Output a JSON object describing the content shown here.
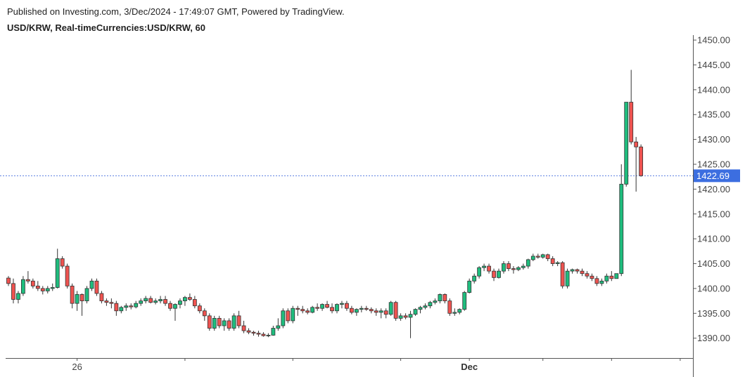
{
  "header": {
    "published": "Published on Investing.com, 3/Dec/2024 - 17:49:07 GMT, Powered by TradingView.",
    "symbol": "USD/KRW, Real-timeCurrencies:USD/KRW, 60"
  },
  "colors": {
    "up": "#1fbd7e",
    "down": "#ef5350",
    "wick": "#333333",
    "price_line": "#5b7fe0",
    "price_tag": "#3c6ee0",
    "axis": "#555555"
  },
  "chart_data": {
    "type": "candlestick",
    "title": "",
    "xlabel": "",
    "ylabel": "",
    "ylim": [
      1386,
      1451
    ],
    "yticks": [
      1390,
      1395,
      1400,
      1405,
      1410,
      1415,
      1420,
      1425,
      1430,
      1435,
      1440,
      1445,
      1450
    ],
    "ytick_labels": [
      "1390.00",
      "1395.00",
      "1400.00",
      "1405.00",
      "1410.00",
      "1415.00",
      "1420.00",
      "1425.00",
      "1430.00",
      "1435.00",
      "1440.00",
      "1445.00",
      "1450.00"
    ],
    "xticks": [
      {
        "index": 14,
        "label": "26"
      },
      {
        "index": 36,
        "label": ""
      },
      {
        "index": 58,
        "label": ""
      },
      {
        "index": 80,
        "label": ""
      },
      {
        "index": 94,
        "label": "Dec"
      },
      {
        "index": 109,
        "label": ""
      },
      {
        "index": 123,
        "label": ""
      },
      {
        "index": 137,
        "label": ""
      }
    ],
    "last_price": 1422.69,
    "last_price_label": "1422.69",
    "candles": [
      [
        1402.1,
        1402.5,
        1400.5,
        1401.0
      ],
      [
        1401.0,
        1402.0,
        1397.0,
        1397.8
      ],
      [
        1397.8,
        1399.5,
        1397.0,
        1399.0
      ],
      [
        1399.0,
        1402.5,
        1398.5,
        1401.8
      ],
      [
        1401.8,
        1403.5,
        1401.0,
        1401.5
      ],
      [
        1401.5,
        1402.0,
        1400.0,
        1400.5
      ],
      [
        1400.5,
        1401.5,
        1399.5,
        1400.0
      ],
      [
        1400.0,
        1400.5,
        1398.8,
        1399.5
      ],
      [
        1399.5,
        1400.5,
        1399.0,
        1400.0
      ],
      [
        1400.0,
        1401.0,
        1399.5,
        1400.2
      ],
      [
        1400.2,
        1408.0,
        1400.0,
        1406.0
      ],
      [
        1406.0,
        1406.5,
        1404.0,
        1404.5
      ],
      [
        1404.5,
        1405.0,
        1400.0,
        1400.5
      ],
      [
        1400.5,
        1401.0,
        1396.0,
        1397.0
      ],
      [
        1397.0,
        1399.5,
        1395.5,
        1398.8
      ],
      [
        1398.8,
        1399.0,
        1394.5,
        1397.5
      ],
      [
        1397.5,
        1400.5,
        1397.0,
        1400.0
      ],
      [
        1400.0,
        1402.0,
        1399.5,
        1401.5
      ],
      [
        1401.5,
        1402.0,
        1398.5,
        1399.0
      ],
      [
        1399.0,
        1399.5,
        1397.0,
        1397.5
      ],
      [
        1397.5,
        1398.0,
        1396.5,
        1397.2
      ],
      [
        1397.2,
        1398.0,
        1396.0,
        1397.0
      ],
      [
        1397.0,
        1397.5,
        1394.5,
        1395.5
      ],
      [
        1395.5,
        1396.5,
        1395.0,
        1396.2
      ],
      [
        1396.2,
        1397.0,
        1395.5,
        1396.5
      ],
      [
        1396.5,
        1397.0,
        1395.8,
        1396.3
      ],
      [
        1396.3,
        1397.5,
        1396.0,
        1397.0
      ],
      [
        1397.0,
        1398.0,
        1396.5,
        1397.5
      ],
      [
        1397.5,
        1398.5,
        1397.0,
        1398.0
      ],
      [
        1398.0,
        1398.5,
        1397.0,
        1397.2
      ],
      [
        1397.2,
        1398.0,
        1396.8,
        1397.5
      ],
      [
        1397.5,
        1398.5,
        1397.0,
        1397.8
      ],
      [
        1397.8,
        1398.5,
        1396.5,
        1397.0
      ],
      [
        1397.0,
        1397.5,
        1395.5,
        1396.0
      ],
      [
        1396.0,
        1397.0,
        1393.5,
        1396.8
      ],
      [
        1396.8,
        1398.0,
        1396.0,
        1397.5
      ],
      [
        1397.5,
        1398.5,
        1396.5,
        1398.2
      ],
      [
        1398.2,
        1399.0,
        1397.5,
        1397.8
      ],
      [
        1397.8,
        1398.5,
        1396.0,
        1396.5
      ],
      [
        1396.5,
        1397.0,
        1395.0,
        1395.5
      ],
      [
        1395.5,
        1396.0,
        1393.5,
        1394.5
      ],
      [
        1394.5,
        1395.0,
        1391.5,
        1392.0
      ],
      [
        1392.0,
        1394.5,
        1391.5,
        1394.0
      ],
      [
        1394.0,
        1394.5,
        1392.0,
        1392.5
      ],
      [
        1392.5,
        1394.0,
        1391.5,
        1393.5
      ],
      [
        1393.5,
        1394.0,
        1391.5,
        1392.0
      ],
      [
        1392.0,
        1395.0,
        1391.5,
        1394.5
      ],
      [
        1394.5,
        1395.5,
        1392.0,
        1392.5
      ],
      [
        1392.5,
        1393.5,
        1391.0,
        1391.5
      ],
      [
        1391.5,
        1392.0,
        1390.8,
        1391.2
      ],
      [
        1391.2,
        1391.5,
        1390.5,
        1391.0
      ],
      [
        1391.0,
        1391.5,
        1390.3,
        1390.8
      ],
      [
        1390.8,
        1391.2,
        1390.3,
        1390.5
      ],
      [
        1390.5,
        1391.0,
        1390.2,
        1390.6
      ],
      [
        1390.6,
        1392.5,
        1390.5,
        1392.0
      ],
      [
        1392.0,
        1394.0,
        1391.5,
        1392.5
      ],
      [
        1392.5,
        1396.0,
        1392.0,
        1395.5
      ],
      [
        1395.5,
        1396.0,
        1393.0,
        1393.5
      ],
      [
        1393.5,
        1396.5,
        1393.0,
        1396.0
      ],
      [
        1396.0,
        1396.5,
        1394.5,
        1395.8
      ],
      [
        1395.8,
        1396.5,
        1395.0,
        1395.5
      ],
      [
        1395.5,
        1396.0,
        1394.8,
        1395.2
      ],
      [
        1395.2,
        1396.5,
        1395.0,
        1396.2
      ],
      [
        1396.2,
        1397.0,
        1395.5,
        1396.0
      ],
      [
        1396.0,
        1397.0,
        1395.5,
        1396.8
      ],
      [
        1396.8,
        1397.5,
        1396.0,
        1396.2
      ],
      [
        1396.2,
        1397.0,
        1395.0,
        1395.5
      ],
      [
        1395.5,
        1397.0,
        1395.0,
        1396.8
      ],
      [
        1396.8,
        1397.5,
        1396.0,
        1397.0
      ],
      [
        1397.0,
        1397.5,
        1395.5,
        1396.0
      ],
      [
        1396.0,
        1396.5,
        1394.8,
        1395.2
      ],
      [
        1395.2,
        1396.0,
        1394.5,
        1395.8
      ],
      [
        1395.8,
        1396.5,
        1395.2,
        1396.0
      ],
      [
        1396.0,
        1396.5,
        1395.5,
        1395.8
      ],
      [
        1395.8,
        1396.2,
        1395.0,
        1395.5
      ],
      [
        1395.5,
        1396.0,
        1394.5,
        1395.2
      ],
      [
        1395.2,
        1396.0,
        1394.0,
        1395.5
      ],
      [
        1395.5,
        1396.0,
        1394.0,
        1394.8
      ],
      [
        1394.8,
        1397.5,
        1394.5,
        1397.2
      ],
      [
        1397.2,
        1397.5,
        1393.5,
        1394.0
      ],
      [
        1394.0,
        1395.0,
        1393.5,
        1394.5
      ],
      [
        1394.5,
        1395.0,
        1393.8,
        1394.2
      ],
      [
        1394.2,
        1395.5,
        1390.0,
        1394.8
      ],
      [
        1394.8,
        1396.0,
        1394.5,
        1395.8
      ],
      [
        1395.8,
        1396.5,
        1395.0,
        1396.2
      ],
      [
        1396.2,
        1397.0,
        1395.8,
        1396.5
      ],
      [
        1396.5,
        1397.5,
        1396.0,
        1397.2
      ],
      [
        1397.2,
        1398.0,
        1396.8,
        1397.5
      ],
      [
        1397.5,
        1399.0,
        1397.0,
        1398.8
      ],
      [
        1398.8,
        1399.0,
        1397.0,
        1397.5
      ],
      [
        1397.5,
        1398.0,
        1394.5,
        1395.0
      ],
      [
        1395.0,
        1396.0,
        1394.5,
        1395.2
      ],
      [
        1395.2,
        1396.0,
        1394.8,
        1395.8
      ],
      [
        1395.8,
        1399.5,
        1395.5,
        1399.2
      ],
      [
        1399.2,
        1402.0,
        1399.0,
        1401.5
      ],
      [
        1401.5,
        1403.0,
        1401.0,
        1402.5
      ],
      [
        1402.5,
        1404.5,
        1402.0,
        1404.2
      ],
      [
        1404.2,
        1405.0,
        1403.5,
        1404.5
      ],
      [
        1404.5,
        1405.0,
        1403.0,
        1403.5
      ],
      [
        1403.5,
        1404.0,
        1401.5,
        1402.2
      ],
      [
        1402.2,
        1404.0,
        1402.0,
        1403.5
      ],
      [
        1403.5,
        1405.5,
        1403.0,
        1405.0
      ],
      [
        1405.0,
        1405.5,
        1403.5,
        1404.0
      ],
      [
        1404.0,
        1404.5,
        1403.0,
        1403.8
      ],
      [
        1403.8,
        1404.5,
        1403.5,
        1404.2
      ],
      [
        1404.2,
        1405.0,
        1403.8,
        1404.5
      ],
      [
        1404.5,
        1406.0,
        1404.0,
        1405.8
      ],
      [
        1405.8,
        1407.0,
        1405.5,
        1406.5
      ],
      [
        1406.5,
        1407.0,
        1406.0,
        1406.3
      ],
      [
        1406.3,
        1407.0,
        1406.0,
        1406.8
      ],
      [
        1406.8,
        1407.0,
        1405.5,
        1406.0
      ],
      [
        1406.0,
        1406.5,
        1404.5,
        1405.0
      ],
      [
        1405.0,
        1405.5,
        1404.5,
        1405.2
      ],
      [
        1405.2,
        1405.5,
        1400.0,
        1400.5
      ],
      [
        1400.5,
        1404.0,
        1400.0,
        1403.5
      ],
      [
        1403.5,
        1404.0,
        1403.0,
        1403.8
      ],
      [
        1403.8,
        1404.0,
        1403.0,
        1403.5
      ],
      [
        1403.5,
        1404.0,
        1402.5,
        1403.0
      ],
      [
        1403.0,
        1403.5,
        1402.0,
        1402.5
      ],
      [
        1402.5,
        1403.0,
        1401.5,
        1402.0
      ],
      [
        1402.0,
        1402.5,
        1400.5,
        1401.0
      ],
      [
        1401.0,
        1402.0,
        1400.5,
        1401.5
      ],
      [
        1401.5,
        1403.0,
        1401.0,
        1402.5
      ],
      [
        1402.5,
        1403.5,
        1401.5,
        1402.0
      ],
      [
        1402.0,
        1403.0,
        1402.0,
        1403.0
      ],
      [
        1403.0,
        1425.0,
        1402.5,
        1421.0
      ],
      [
        1421.0,
        1437.5,
        1420.5,
        1437.5
      ],
      [
        1437.5,
        1444.0,
        1429.0,
        1429.5
      ],
      [
        1429.5,
        1430.5,
        1419.5,
        1428.5
      ],
      [
        1428.5,
        1429.0,
        1422.5,
        1422.7
      ]
    ]
  }
}
